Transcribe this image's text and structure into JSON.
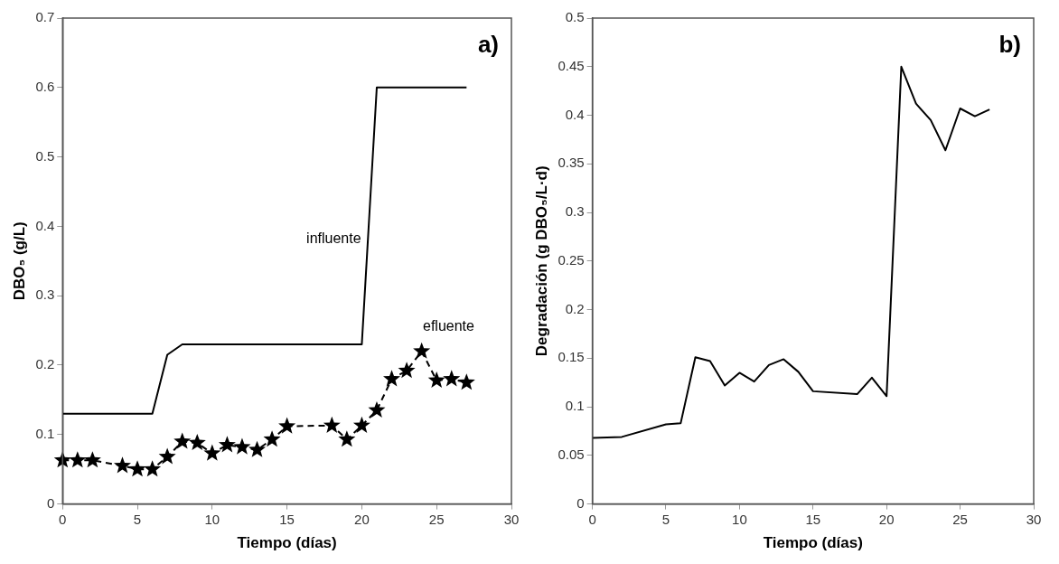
{
  "chart_data": [
    {
      "type": "line",
      "xlabel": "Tiempo (días)",
      "ylabel": "DBO₅ (g/L)",
      "xlim": [
        0,
        30
      ],
      "xticks": [
        0,
        5,
        10,
        15,
        20,
        25,
        30
      ],
      "ylim": [
        0,
        0.7
      ],
      "yticks": [
        0,
        0.1,
        0.2,
        0.3,
        0.4,
        0.5,
        0.6,
        0.7
      ],
      "grid": false,
      "legend": false,
      "annotations": [
        "a)"
      ],
      "series": [
        {
          "name": "influente",
          "color": "#000000",
          "marker": "none",
          "line_style": "solid",
          "x": [
            0,
            6,
            7,
            8,
            20,
            21,
            27
          ],
          "values": [
            0.13,
            0.13,
            0.215,
            0.23,
            0.23,
            0.6,
            0.6
          ]
        },
        {
          "name": "efluente",
          "color": "#000000",
          "marker": "star",
          "line_style": "dashed",
          "x": [
            0,
            1,
            2,
            4,
            5,
            6,
            7,
            8,
            9,
            10,
            11,
            12,
            13,
            14,
            15,
            18,
            19,
            20,
            21,
            22,
            23,
            24,
            25,
            26,
            27
          ],
          "values": [
            0.063,
            0.063,
            0.063,
            0.055,
            0.05,
            0.05,
            0.068,
            0.09,
            0.088,
            0.073,
            0.085,
            0.082,
            0.078,
            0.093,
            0.112,
            0.113,
            0.093,
            0.113,
            0.135,
            0.18,
            0.192,
            0.22,
            0.178,
            0.18,
            0.175
          ]
        }
      ]
    },
    {
      "type": "line",
      "xlabel": "Tiempo (días)",
      "ylabel": "Degradación (g DBO₅/L·d)",
      "xlim": [
        0,
        30
      ],
      "xticks": [
        0,
        5,
        10,
        15,
        20,
        25,
        30
      ],
      "ylim": [
        0,
        0.5
      ],
      "yticks": [
        0,
        0.05,
        0.1,
        0.15,
        0.2,
        0.25,
        0.3,
        0.35,
        0.4,
        0.45,
        0.5
      ],
      "grid": false,
      "legend": false,
      "annotations": [
        "b)"
      ],
      "series": [
        {
          "color": "#000000",
          "marker": "none",
          "line_style": "solid",
          "x": [
            0,
            2,
            5,
            6,
            7,
            8,
            9,
            10,
            11,
            12,
            13,
            14,
            15,
            18,
            19,
            20,
            21,
            22,
            23,
            24,
            25,
            26,
            27
          ],
          "values": [
            0.068,
            0.069,
            0.082,
            0.083,
            0.151,
            0.147,
            0.122,
            0.135,
            0.126,
            0.143,
            0.149,
            0.136,
            0.116,
            0.113,
            0.13,
            0.111,
            0.45,
            0.412,
            0.395,
            0.364,
            0.407,
            0.399,
            0.406
          ]
        }
      ]
    }
  ]
}
